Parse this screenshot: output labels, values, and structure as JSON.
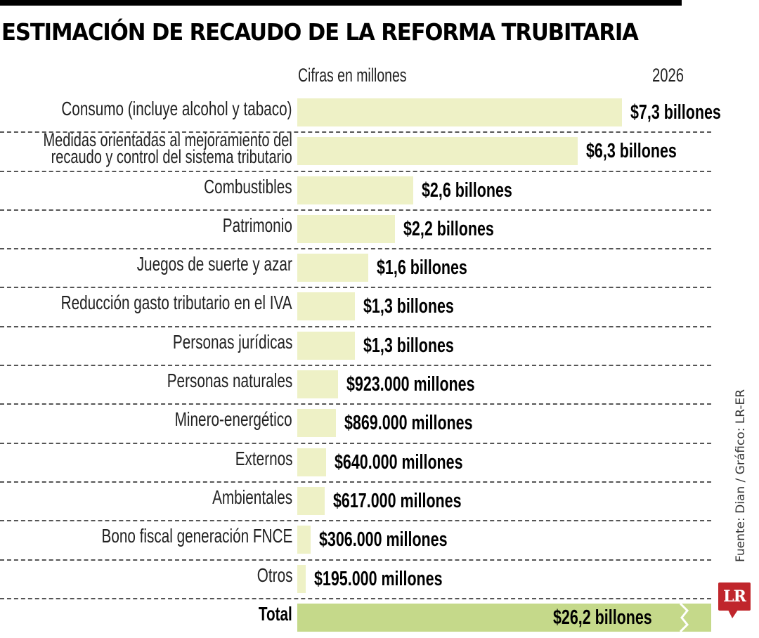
{
  "header": {
    "title": "ESTIMACIÓN DE RECAUDO DE LA REFORMA TRUBITARIA",
    "subtitle": "Cifras en millones",
    "year": "2026"
  },
  "rows": [
    {
      "label": "Consumo (incluye alcohol y tabaco)",
      "value_label": "$7,3 billones",
      "value": 7300000
    },
    {
      "label_line1": "Medidas orientadas al mejoramiento del",
      "label_line2": "recaudo y control del sistema tributario",
      "value_label": "$6,3 billones",
      "value": 6300000
    },
    {
      "label": "Combustibles",
      "value_label": "$2,6 billones",
      "value": 2600000
    },
    {
      "label": "Patrimonio",
      "value_label": "$2,2 billones",
      "value": 2200000
    },
    {
      "label": "Juegos de suerte y azar",
      "value_label": "$1,6  billones",
      "value": 1600000
    },
    {
      "label": "Reducción gasto tributario en el IVA",
      "value_label": "$1,3 billones",
      "value": 1300000
    },
    {
      "label": "Personas jurídicas",
      "value_label": "$1,3 billones",
      "value": 1300000
    },
    {
      "label": "Personas naturales",
      "value_label": "$923.000 millones",
      "value": 923000
    },
    {
      "label": "Minero-energético",
      "value_label": "$869.000 millones",
      "value": 869000
    },
    {
      "label": "Externos",
      "value_label": "$640.000 millones",
      "value": 640000
    },
    {
      "label": "Ambientales",
      "value_label": "$617.000 millones",
      "value": 617000
    },
    {
      "label": "Bono fiscal generación FNCE",
      "value_label": "$306.000 millones",
      "value": 306000
    },
    {
      "label": "Otros",
      "value_label": "$195.000 millones",
      "value": 195000
    }
  ],
  "total": {
    "label": "Total",
    "value_label": "$26,2 billones",
    "value": 26200000
  },
  "footer": {
    "source": "Fuente: Dian / Gráfico: LR-ER",
    "logo": "LR"
  },
  "colors": {
    "bar": "#eef1c6",
    "total_bar": "#c5d98a",
    "logo": "#c0262c"
  },
  "chart_data": {
    "type": "bar",
    "orientation": "horizontal",
    "title": "ESTIMACIÓN DE RECAUDO DE LA REFORMA TRUBITARIA",
    "subtitle": "Cifras en millones",
    "series_label": "2026",
    "categories": [
      "Consumo (incluye alcohol y tabaco)",
      "Medidas orientadas al mejoramiento del recaudo y control del sistema tributario",
      "Combustibles",
      "Patrimonio",
      "Juegos de suerte y azar",
      "Reducción gasto tributario en el IVA",
      "Personas jurídicas",
      "Personas naturales",
      "Minero-energético",
      "Externos",
      "Ambientales",
      "Bono fiscal generación FNCE",
      "Otros",
      "Total"
    ],
    "values": [
      7300000,
      6300000,
      2600000,
      2200000,
      1600000,
      1300000,
      1300000,
      923000,
      869000,
      640000,
      617000,
      306000,
      195000,
      26200000
    ],
    "value_labels": [
      "$7,3 billones",
      "$6,3 billones",
      "$2,6 billones",
      "$2,2 billones",
      "$1,6  billones",
      "$1,3 billones",
      "$1,3 billones",
      "$923.000 millones",
      "$869.000 millones",
      "$640.000 millones",
      "$617.000 millones",
      "$306.000 millones",
      "$195.000 millones",
      "$26,2 billones"
    ],
    "units": "millones de pesos",
    "xlabel": "",
    "ylabel": "",
    "grid": false,
    "legend": null,
    "annotations": [
      "Total bar truncated with break mark"
    ],
    "source": "Fuente: Dian / Gráfico: LR-ER"
  }
}
